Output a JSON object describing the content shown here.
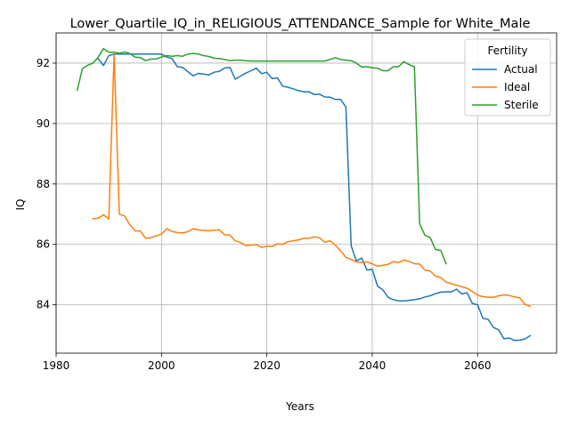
{
  "chart_data": {
    "type": "line",
    "title": "Lower_Quartile_IQ_in_RELIGIOUS_ATTENDANCE_Sample for White_Male",
    "xlabel": "Years",
    "ylabel": "IQ",
    "xlim": [
      1980,
      2075
    ],
    "ylim": [
      82.4,
      93.0
    ],
    "xticks": [
      1980,
      2000,
      2020,
      2040,
      2060
    ],
    "yticks": [
      84,
      86,
      88,
      90,
      92
    ],
    "grid": true,
    "legend": {
      "title": "Fertility",
      "placement": "top-right"
    },
    "series": [
      {
        "name": "Actual",
        "color": "#1f77b4",
        "x": [
          1988,
          1989,
          1990,
          1991,
          1992,
          1993,
          1994,
          1995,
          1996,
          1997,
          1998,
          1999,
          2000,
          2001,
          2002,
          2003,
          2004,
          2005,
          2006,
          2007,
          2008,
          2009,
          2010,
          2011,
          2012,
          2013,
          2014,
          2015,
          2016,
          2017,
          2018,
          2019,
          2020,
          2021,
          2022,
          2023,
          2024,
          2025,
          2026,
          2027,
          2028,
          2029,
          2030,
          2031,
          2032,
          2033,
          2034,
          2035,
          2036,
          2037,
          2038,
          2039,
          2040,
          2041,
          2042,
          2043,
          2044,
          2045,
          2046,
          2047,
          2048,
          2049,
          2050,
          2051,
          2052,
          2053,
          2054,
          2055,
          2056,
          2057,
          2058,
          2059,
          2060,
          2061,
          2062,
          2063,
          2064,
          2065,
          2066,
          2067,
          2068,
          2069,
          2070
        ],
        "y": [
          92.15,
          91.92,
          92.25,
          92.3,
          92.3,
          92.3,
          92.3,
          92.3,
          92.3,
          92.3,
          92.3,
          92.3,
          92.3,
          92.2,
          92.15,
          91.88,
          91.86,
          91.72,
          91.58,
          91.66,
          91.64,
          91.61,
          91.7,
          91.73,
          91.84,
          91.86,
          91.47,
          91.57,
          91.67,
          91.75,
          91.83,
          91.65,
          91.7,
          91.49,
          91.51,
          91.24,
          91.2,
          91.15,
          91.09,
          91.05,
          91.05,
          90.96,
          90.97,
          90.88,
          90.87,
          90.8,
          90.8,
          90.54,
          85.95,
          85.45,
          85.55,
          85.15,
          85.18,
          84.62,
          84.5,
          84.25,
          84.17,
          84.13,
          84.13,
          84.15,
          84.17,
          84.2,
          84.26,
          84.3,
          84.37,
          84.42,
          84.43,
          84.43,
          84.52,
          84.36,
          84.4,
          84.05,
          84.0,
          83.55,
          83.52,
          83.25,
          83.17,
          82.88,
          82.9,
          82.82,
          82.83,
          82.87,
          82.98
        ]
      },
      {
        "name": "Ideal",
        "color": "#ff7f0e",
        "x": [
          1987,
          1988,
          1989,
          1990,
          1991,
          1992,
          1993,
          1994,
          1995,
          1996,
          1997,
          1998,
          1999,
          2000,
          2001,
          2002,
          2003,
          2004,
          2005,
          2006,
          2007,
          2008,
          2009,
          2010,
          2011,
          2012,
          2013,
          2014,
          2015,
          2016,
          2017,
          2018,
          2019,
          2020,
          2021,
          2022,
          2023,
          2024,
          2025,
          2026,
          2027,
          2028,
          2029,
          2030,
          2031,
          2032,
          2033,
          2034,
          2035,
          2036,
          2037,
          2038,
          2039,
          2040,
          2041,
          2042,
          2043,
          2044,
          2045,
          2046,
          2047,
          2048,
          2049,
          2050,
          2051,
          2052,
          2053,
          2054,
          2055,
          2056,
          2057,
          2058,
          2059,
          2060,
          2061,
          2062,
          2063,
          2064,
          2065,
          2066,
          2067,
          2068,
          2069,
          2070
        ],
        "y": [
          86.85,
          86.87,
          86.98,
          86.84,
          92.3,
          87.0,
          86.94,
          86.65,
          86.45,
          86.44,
          86.2,
          86.22,
          86.28,
          86.34,
          86.52,
          86.43,
          86.39,
          86.38,
          86.42,
          86.52,
          86.48,
          86.46,
          86.45,
          86.47,
          86.48,
          86.32,
          86.31,
          86.12,
          86.06,
          85.96,
          85.98,
          85.99,
          85.9,
          85.94,
          85.93,
          86.02,
          86.0,
          86.09,
          86.12,
          86.15,
          86.2,
          86.2,
          86.25,
          86.22,
          86.07,
          86.12,
          85.98,
          85.78,
          85.57,
          85.5,
          85.42,
          85.4,
          85.42,
          85.36,
          85.28,
          85.31,
          85.34,
          85.43,
          85.4,
          85.48,
          85.44,
          85.36,
          85.35,
          85.15,
          85.12,
          84.95,
          84.9,
          84.75,
          84.7,
          84.65,
          84.6,
          84.55,
          84.44,
          84.32,
          84.27,
          84.25,
          84.25,
          84.3,
          84.33,
          84.31,
          84.26,
          84.23,
          84.02,
          83.95
        ]
      },
      {
        "name": "Sterile",
        "color": "#2ca02c",
        "x": [
          1984,
          1985,
          1986,
          1987,
          1988,
          1989,
          1990,
          1991,
          1992,
          1993,
          1994,
          1995,
          1996,
          1997,
          1998,
          1999,
          2000,
          2001,
          2002,
          2003,
          2004,
          2005,
          2006,
          2007,
          2008,
          2009,
          2010,
          2011,
          2012,
          2013,
          2014,
          2015,
          2016,
          2017,
          2018,
          2019,
          2020,
          2021,
          2022,
          2023,
          2024,
          2025,
          2026,
          2027,
          2028,
          2029,
          2030,
          2031,
          2032,
          2033,
          2034,
          2035,
          2036,
          2037,
          2038,
          2039,
          2040,
          2041,
          2042,
          2043,
          2044,
          2045,
          2046,
          2047,
          2048,
          2049,
          2050,
          2051,
          2052,
          2053,
          2054
        ],
        "y": [
          91.1,
          91.82,
          91.93,
          92.0,
          92.2,
          92.48,
          92.36,
          92.36,
          92.33,
          92.37,
          92.32,
          92.2,
          92.18,
          92.08,
          92.13,
          92.14,
          92.2,
          92.25,
          92.23,
          92.25,
          92.23,
          92.3,
          92.32,
          92.3,
          92.25,
          92.22,
          92.16,
          92.15,
          92.12,
          92.08,
          92.1,
          92.1,
          92.08,
          92.07,
          92.07,
          92.07,
          92.07,
          92.07,
          92.07,
          92.07,
          92.07,
          92.07,
          92.07,
          92.07,
          92.07,
          92.07,
          92.07,
          92.07,
          92.12,
          92.18,
          92.12,
          92.1,
          92.08,
          92.0,
          91.87,
          91.88,
          91.85,
          91.83,
          91.75,
          91.75,
          91.88,
          91.88,
          92.05,
          91.95,
          91.88,
          86.68,
          86.3,
          86.23,
          85.83,
          85.8,
          85.36
        ]
      }
    ]
  }
}
